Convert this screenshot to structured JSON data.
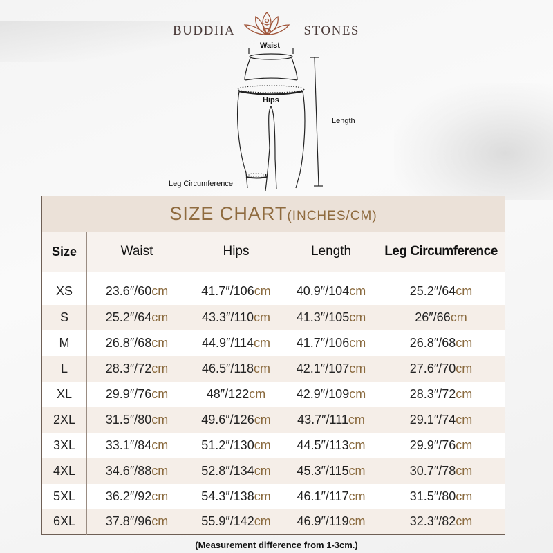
{
  "brand": {
    "left": "BUDDHA",
    "right": "STONES"
  },
  "diagram": {
    "waist": "Waist",
    "hips": "Hips",
    "length": "Length",
    "leg": "Leg Circumference"
  },
  "chart": {
    "title": "SIZE CHART",
    "unit_label": "(INCHES/CM)",
    "headers": [
      "Size",
      "Waist",
      "Hips",
      "Length",
      "Leg Circumference"
    ],
    "unit": "cm",
    "rows": [
      [
        "XS",
        "23.6″/60",
        "41.7″/106",
        "40.9″/104",
        "25.2″/64"
      ],
      [
        "S",
        "25.2″/64",
        "43.3″/110",
        "41.3″/105",
        "26″/66"
      ],
      [
        "M",
        "26.8″/68",
        "44.9″/114",
        "41.7″/106",
        "26.8″/68"
      ],
      [
        "L",
        "28.3″/72",
        "46.5″/118",
        "42.1″/107",
        "27.6″/70"
      ],
      [
        "XL",
        "29.9″/76",
        "48″/122",
        "42.9″/109",
        "28.3″/72"
      ],
      [
        "2XL",
        "31.5″/80",
        "49.6″/126",
        "43.7″/111",
        "29.1″/74"
      ],
      [
        "3XL",
        "33.1″/84",
        "51.2″/130",
        "44.5″/113",
        "29.9″/76"
      ],
      [
        "4XL",
        "34.6″/88",
        "52.8″/134",
        "45.3″/115",
        "30.7″/78"
      ],
      [
        "5XL",
        "36.2″/92",
        "54.3″/138",
        "46.1″/117",
        "31.5″/80"
      ],
      [
        "6XL",
        "37.8″/96",
        "55.9″/142",
        "46.9″/119",
        "32.3″/82"
      ]
    ]
  },
  "note": "(Measurement difference from 1-3cm.)",
  "colors": {
    "accent": "#8f6b3f",
    "header_bg": "#ebe1d8",
    "alt_row": "#f5eee8"
  }
}
